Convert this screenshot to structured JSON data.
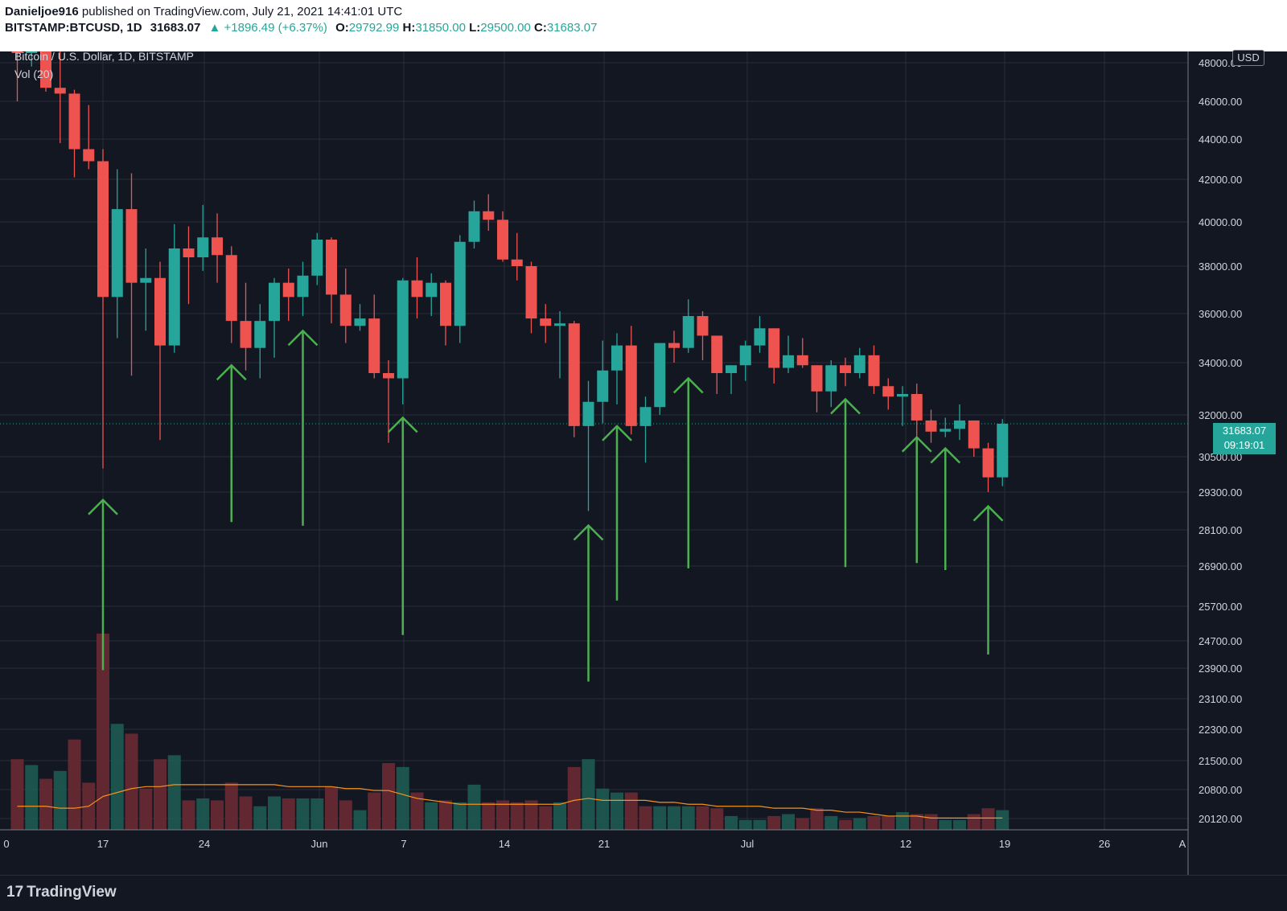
{
  "header": {
    "publisher": "Danieljoe916",
    "published_text": "published on TradingView.com, July 21, 2021 14:41:01 UTC",
    "symbol": "BITSTAMP:BTCUSD, 1D",
    "last": "31683.07",
    "change": "▲ +1896.49 (+6.37%)",
    "o_label": "O:",
    "o": "29792.99",
    "h_label": "H:",
    "h": "31850.00",
    "l_label": "L:",
    "l": "29500.00",
    "c_label": "C:",
    "c": "31683.07"
  },
  "legend": {
    "title": "Bitcoin / U.S. Dollar, 1D, BITSTAMP",
    "vol": "Vol (20)"
  },
  "currency_badge": "USD",
  "price_tag": {
    "price": "31683.07",
    "countdown": "09:19:01"
  },
  "footer": {
    "brand": "TradingView",
    "logo_mark": "17"
  },
  "colors": {
    "up": "#26a69a",
    "down": "#ef5350",
    "background": "#131722",
    "grid": "#2a2e39",
    "arrow": "#4caf50",
    "ma": "#f7931a"
  },
  "chart_data": {
    "type": "candlestick",
    "y_axis_ticks": [
      "48000.00",
      "46000.00",
      "44000.00",
      "42000.00",
      "40000.00",
      "38000.00",
      "36000.00",
      "34000.00",
      "32000.00",
      "30500.00",
      "29300.00",
      "28100.00",
      "26900.00",
      "25700.00",
      "24700.00",
      "23900.00",
      "23100.00",
      "22300.00",
      "21500.00",
      "20800.00",
      "20120.00"
    ],
    "x_axis_ticks": [
      "0",
      "17",
      "24",
      "Jun",
      "7",
      "14",
      "21",
      "Jul",
      "12",
      "19",
      "26",
      "A"
    ],
    "candles": [
      {
        "date": "May 13",
        "o": 49700,
        "h": 51500,
        "l": 46000,
        "c": 49400
      },
      {
        "date": "May 14",
        "o": 49400,
        "h": 51500,
        "l": 47800,
        "c": 49700
      },
      {
        "date": "May 15",
        "o": 49700,
        "h": 50600,
        "l": 46500,
        "c": 46700
      },
      {
        "date": "May 16",
        "o": 46700,
        "h": 49800,
        "l": 43800,
        "c": 46400
      },
      {
        "date": "May 17",
        "o": 46400,
        "h": 46600,
        "l": 42100,
        "c": 43500
      },
      {
        "date": "May 18",
        "o": 43500,
        "h": 45800,
        "l": 42500,
        "c": 42900
      },
      {
        "date": "May 19",
        "o": 42900,
        "h": 43500,
        "l": 30100,
        "c": 36700
      },
      {
        "date": "May 20",
        "o": 36700,
        "h": 42500,
        "l": 35000,
        "c": 40600
      },
      {
        "date": "May 21",
        "o": 40600,
        "h": 42300,
        "l": 33500,
        "c": 37300
      },
      {
        "date": "May 22",
        "o": 37300,
        "h": 38800,
        "l": 35300,
        "c": 37500
      },
      {
        "date": "May 23",
        "o": 37500,
        "h": 38200,
        "l": 31100,
        "c": 34700
      },
      {
        "date": "May 24",
        "o": 34700,
        "h": 39900,
        "l": 34400,
        "c": 38800
      },
      {
        "date": "May 25",
        "o": 38800,
        "h": 39800,
        "l": 36400,
        "c": 38400
      },
      {
        "date": "May 26",
        "o": 38400,
        "h": 40800,
        "l": 37800,
        "c": 39300
      },
      {
        "date": "May 27",
        "o": 39300,
        "h": 40400,
        "l": 37300,
        "c": 38500
      },
      {
        "date": "May 28",
        "o": 38500,
        "h": 38900,
        "l": 34800,
        "c": 35700
      },
      {
        "date": "May 29",
        "o": 35700,
        "h": 37300,
        "l": 33700,
        "c": 34600
      },
      {
        "date": "May 30",
        "o": 34600,
        "h": 36400,
        "l": 33400,
        "c": 35700
      },
      {
        "date": "May 31",
        "o": 35700,
        "h": 37500,
        "l": 34200,
        "c": 37300
      },
      {
        "date": "Jun 1",
        "o": 37300,
        "h": 37900,
        "l": 35700,
        "c": 36700
      },
      {
        "date": "Jun 2",
        "o": 36700,
        "h": 38200,
        "l": 35900,
        "c": 37600
      },
      {
        "date": "Jun 3",
        "o": 37600,
        "h": 39500,
        "l": 37200,
        "c": 39200
      },
      {
        "date": "Jun 4",
        "o": 39200,
        "h": 39300,
        "l": 35600,
        "c": 36800
      },
      {
        "date": "Jun 5",
        "o": 36800,
        "h": 37900,
        "l": 34800,
        "c": 35500
      },
      {
        "date": "Jun 6",
        "o": 35500,
        "h": 36400,
        "l": 35300,
        "c": 35800
      },
      {
        "date": "Jun 7",
        "o": 35800,
        "h": 36800,
        "l": 33400,
        "c": 33600
      },
      {
        "date": "Jun 8",
        "o": 33600,
        "h": 34100,
        "l": 31000,
        "c": 33400
      },
      {
        "date": "Jun 9",
        "o": 33400,
        "h": 37500,
        "l": 32400,
        "c": 37400
      },
      {
        "date": "Jun 10",
        "o": 37400,
        "h": 38400,
        "l": 35800,
        "c": 36700
      },
      {
        "date": "Jun 11",
        "o": 36700,
        "h": 37700,
        "l": 35900,
        "c": 37300
      },
      {
        "date": "Jun 12",
        "o": 37300,
        "h": 37400,
        "l": 34700,
        "c": 35500
      },
      {
        "date": "Jun 13",
        "o": 35500,
        "h": 39400,
        "l": 34800,
        "c": 39100
      },
      {
        "date": "Jun 14",
        "o": 39100,
        "h": 41000,
        "l": 38800,
        "c": 40500
      },
      {
        "date": "Jun 15",
        "o": 40500,
        "h": 41300,
        "l": 39600,
        "c": 40100
      },
      {
        "date": "Jun 16",
        "o": 40100,
        "h": 40500,
        "l": 38200,
        "c": 38300
      },
      {
        "date": "Jun 17",
        "o": 38300,
        "h": 39500,
        "l": 37400,
        "c": 38000
      },
      {
        "date": "Jun 18",
        "o": 38000,
        "h": 38200,
        "l": 35200,
        "c": 35800
      },
      {
        "date": "Jun 19",
        "o": 35800,
        "h": 36400,
        "l": 34800,
        "c": 35500
      },
      {
        "date": "Jun 20",
        "o": 35500,
        "h": 36100,
        "l": 33400,
        "c": 35600
      },
      {
        "date": "Jun 21",
        "o": 35600,
        "h": 35700,
        "l": 31200,
        "c": 31600
      },
      {
        "date": "Jun 22",
        "o": 31600,
        "h": 33300,
        "l": 28700,
        "c": 32500
      },
      {
        "date": "Jun 23",
        "o": 32500,
        "h": 34900,
        "l": 31700,
        "c": 33700
      },
      {
        "date": "Jun 24",
        "o": 33700,
        "h": 35200,
        "l": 32400,
        "c": 34700
      },
      {
        "date": "Jun 25",
        "o": 34700,
        "h": 35500,
        "l": 31300,
        "c": 31600
      },
      {
        "date": "Jun 26",
        "o": 31600,
        "h": 32700,
        "l": 30300,
        "c": 32300
      },
      {
        "date": "Jun 27",
        "o": 32300,
        "h": 34700,
        "l": 32000,
        "c": 34800
      },
      {
        "date": "Jun 28",
        "o": 34800,
        "h": 35300,
        "l": 34000,
        "c": 34600
      },
      {
        "date": "Jun 29",
        "o": 34600,
        "h": 36600,
        "l": 34400,
        "c": 35900
      },
      {
        "date": "Jun 30",
        "o": 35900,
        "h": 36100,
        "l": 34100,
        "c": 35100
      },
      {
        "date": "Jul 1",
        "o": 35100,
        "h": 35100,
        "l": 32800,
        "c": 33600
      },
      {
        "date": "Jul 2",
        "o": 33600,
        "h": 33900,
        "l": 32800,
        "c": 33900
      },
      {
        "date": "Jul 3",
        "o": 33900,
        "h": 34900,
        "l": 33300,
        "c": 34700
      },
      {
        "date": "Jul 4",
        "o": 34700,
        "h": 35900,
        "l": 34400,
        "c": 35400
      },
      {
        "date": "Jul 5",
        "o": 35400,
        "h": 35400,
        "l": 33200,
        "c": 33800
      },
      {
        "date": "Jul 6",
        "o": 33800,
        "h": 35100,
        "l": 33600,
        "c": 34300
      },
      {
        "date": "Jul 7",
        "o": 34300,
        "h": 35000,
        "l": 33800,
        "c": 33900
      },
      {
        "date": "Jul 8",
        "o": 33900,
        "h": 33900,
        "l": 32100,
        "c": 32900
      },
      {
        "date": "Jul 9",
        "o": 32900,
        "h": 34100,
        "l": 32300,
        "c": 33900
      },
      {
        "date": "Jul 10",
        "o": 33900,
        "h": 34200,
        "l": 33100,
        "c": 33600
      },
      {
        "date": "Jul 11",
        "o": 33600,
        "h": 34600,
        "l": 33400,
        "c": 34300
      },
      {
        "date": "Jul 12",
        "o": 34300,
        "h": 34700,
        "l": 32800,
        "c": 33100
      },
      {
        "date": "Jul 13",
        "o": 33100,
        "h": 33400,
        "l": 32200,
        "c": 32700
      },
      {
        "date": "Jul 14",
        "o": 32700,
        "h": 33100,
        "l": 31600,
        "c": 32800
      },
      {
        "date": "Jul 15",
        "o": 32800,
        "h": 33200,
        "l": 31200,
        "c": 31800
      },
      {
        "date": "Jul 16",
        "o": 31800,
        "h": 32200,
        "l": 31000,
        "c": 31400
      },
      {
        "date": "Jul 17",
        "o": 31400,
        "h": 31900,
        "l": 31200,
        "c": 31500
      },
      {
        "date": "Jul 18",
        "o": 31500,
        "h": 32400,
        "l": 31100,
        "c": 31800
      },
      {
        "date": "Jul 19",
        "o": 31800,
        "h": 31800,
        "l": 30500,
        "c": 30800
      },
      {
        "date": "Jul 20",
        "o": 30800,
        "h": 31000,
        "l": 29300,
        "c": 29800
      },
      {
        "date": "Jul 21",
        "o": 29800,
        "h": 31850,
        "l": 29500,
        "c": 31683
      }
    ],
    "volume": [
      {
        "date": "May 13",
        "v": 0.36,
        "up": false
      },
      {
        "date": "May 14",
        "v": 0.33,
        "up": true
      },
      {
        "date": "May 15",
        "v": 0.26,
        "up": false
      },
      {
        "date": "May 16",
        "v": 0.3,
        "up": true
      },
      {
        "date": "May 17",
        "v": 0.46,
        "up": false
      },
      {
        "date": "May 18",
        "v": 0.24,
        "up": false
      },
      {
        "date": "May 19",
        "v": 1.0,
        "up": false
      },
      {
        "date": "May 20",
        "v": 0.54,
        "up": true
      },
      {
        "date": "May 21",
        "v": 0.49,
        "up": false
      },
      {
        "date": "May 22",
        "v": 0.21,
        "up": false
      },
      {
        "date": "May 23",
        "v": 0.36,
        "up": false
      },
      {
        "date": "May 24",
        "v": 0.38,
        "up": true
      },
      {
        "date": "May 25",
        "v": 0.15,
        "up": false
      },
      {
        "date": "May 26",
        "v": 0.16,
        "up": true
      },
      {
        "date": "May 27",
        "v": 0.15,
        "up": false
      },
      {
        "date": "May 28",
        "v": 0.24,
        "up": false
      },
      {
        "date": "May 29",
        "v": 0.17,
        "up": false
      },
      {
        "date": "May 30",
        "v": 0.12,
        "up": true
      },
      {
        "date": "May 31",
        "v": 0.17,
        "up": true
      },
      {
        "date": "Jun 1",
        "v": 0.16,
        "up": false
      },
      {
        "date": "Jun 2",
        "v": 0.16,
        "up": true
      },
      {
        "date": "Jun 3",
        "v": 0.16,
        "up": true
      },
      {
        "date": "Jun 4",
        "v": 0.22,
        "up": false
      },
      {
        "date": "Jun 5",
        "v": 0.15,
        "up": false
      },
      {
        "date": "Jun 6",
        "v": 0.1,
        "up": true
      },
      {
        "date": "Jun 7",
        "v": 0.19,
        "up": false
      },
      {
        "date": "Jun 8",
        "v": 0.34,
        "up": false
      },
      {
        "date": "Jun 9",
        "v": 0.32,
        "up": true
      },
      {
        "date": "Jun 10",
        "v": 0.19,
        "up": false
      },
      {
        "date": "Jun 11",
        "v": 0.14,
        "up": true
      },
      {
        "date": "Jun 12",
        "v": 0.15,
        "up": false
      },
      {
        "date": "Jun 13",
        "v": 0.14,
        "up": true
      },
      {
        "date": "Jun 14",
        "v": 0.23,
        "up": true
      },
      {
        "date": "Jun 15",
        "v": 0.14,
        "up": false
      },
      {
        "date": "Jun 16",
        "v": 0.15,
        "up": false
      },
      {
        "date": "Jun 17",
        "v": 0.14,
        "up": false
      },
      {
        "date": "Jun 18",
        "v": 0.15,
        "up": false
      },
      {
        "date": "Jun 19",
        "v": 0.12,
        "up": false
      },
      {
        "date": "Jun 20",
        "v": 0.14,
        "up": true
      },
      {
        "date": "Jun 21",
        "v": 0.32,
        "up": false
      },
      {
        "date": "Jun 22",
        "v": 0.36,
        "up": true
      },
      {
        "date": "Jun 23",
        "v": 0.21,
        "up": true
      },
      {
        "date": "Jun 24",
        "v": 0.19,
        "up": true
      },
      {
        "date": "Jun 25",
        "v": 0.19,
        "up": false
      },
      {
        "date": "Jun 26",
        "v": 0.12,
        "up": false
      },
      {
        "date": "Jun 27",
        "v": 0.12,
        "up": true
      },
      {
        "date": "Jun 28",
        "v": 0.12,
        "up": true
      },
      {
        "date": "Jun 29",
        "v": 0.12,
        "up": true
      },
      {
        "date": "Jun 30",
        "v": 0.12,
        "up": false
      },
      {
        "date": "Jul 1",
        "v": 0.11,
        "up": false
      },
      {
        "date": "Jul 2",
        "v": 0.07,
        "up": true
      },
      {
        "date": "Jul 3",
        "v": 0.05,
        "up": true
      },
      {
        "date": "Jul 4",
        "v": 0.05,
        "up": true
      },
      {
        "date": "Jul 5",
        "v": 0.07,
        "up": false
      },
      {
        "date": "Jul 6",
        "v": 0.08,
        "up": true
      },
      {
        "date": "Jul 7",
        "v": 0.06,
        "up": false
      },
      {
        "date": "Jul 8",
        "v": 0.11,
        "up": false
      },
      {
        "date": "Jul 9",
        "v": 0.07,
        "up": true
      },
      {
        "date": "Jul 10",
        "v": 0.05,
        "up": false
      },
      {
        "date": "Jul 11",
        "v": 0.06,
        "up": true
      },
      {
        "date": "Jul 12",
        "v": 0.07,
        "up": false
      },
      {
        "date": "Jul 13",
        "v": 0.07,
        "up": false
      },
      {
        "date": "Jul 14",
        "v": 0.09,
        "up": true
      },
      {
        "date": "Jul 15",
        "v": 0.08,
        "up": false
      },
      {
        "date": "Jul 16",
        "v": 0.08,
        "up": false
      },
      {
        "date": "Jul 17",
        "v": 0.05,
        "up": true
      },
      {
        "date": "Jul 18",
        "v": 0.05,
        "up": true
      },
      {
        "date": "Jul 19",
        "v": 0.08,
        "up": false
      },
      {
        "date": "Jul 20",
        "v": 0.11,
        "up": false
      },
      {
        "date": "Jul 21",
        "v": 0.1,
        "up": true
      }
    ],
    "volume_ma": [
      0.12,
      0.12,
      0.12,
      0.11,
      0.11,
      0.12,
      0.17,
      0.19,
      0.21,
      0.22,
      0.22,
      0.23,
      0.23,
      0.23,
      0.23,
      0.23,
      0.23,
      0.23,
      0.23,
      0.22,
      0.22,
      0.22,
      0.22,
      0.21,
      0.21,
      0.2,
      0.2,
      0.18,
      0.16,
      0.15,
      0.14,
      0.13,
      0.13,
      0.13,
      0.13,
      0.13,
      0.13,
      0.13,
      0.13,
      0.15,
      0.16,
      0.15,
      0.15,
      0.15,
      0.15,
      0.14,
      0.14,
      0.13,
      0.13,
      0.12,
      0.12,
      0.12,
      0.12,
      0.11,
      0.11,
      0.11,
      0.1,
      0.1,
      0.09,
      0.09,
      0.08,
      0.07,
      0.07,
      0.07,
      0.06,
      0.06,
      0.06,
      0.06,
      0.06,
      0.06
    ],
    "arrows": [
      {
        "date": "May 19",
        "tip": 29050,
        "tail": 23850
      },
      {
        "date": "May 28",
        "tip": 33900,
        "tail": 28350
      },
      {
        "date": "Jun 2",
        "tip": 35300,
        "tail": 28230
      },
      {
        "date": "Jun 9",
        "tip": 31900,
        "tail": 24870
      },
      {
        "date": "Jun 22",
        "tip": 28240,
        "tail": 23550
      },
      {
        "date": "Jun 24",
        "tip": 31600,
        "tail": 25870
      },
      {
        "date": "Jun 29",
        "tip": 33400,
        "tail": 26830
      },
      {
        "date": "Jul 10",
        "tip": 32600,
        "tail": 26870
      },
      {
        "date": "Jul 15",
        "tip": 31200,
        "tail": 27000
      },
      {
        "date": "Jul 17",
        "tip": 30800,
        "tail": 26780
      },
      {
        "date": "Jul 20",
        "tip": 28850,
        "tail": 24300
      }
    ]
  }
}
